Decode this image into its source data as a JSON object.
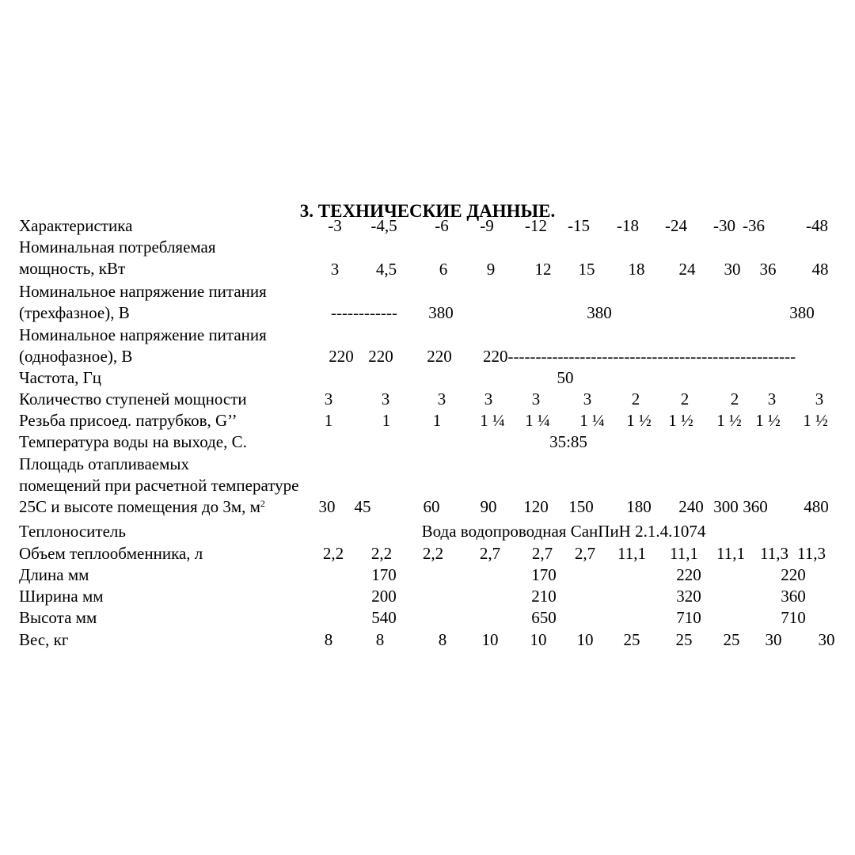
{
  "title": "3. ТЕХНИЧЕСКИЕ  ДАННЫЕ.",
  "rows": [
    {
      "label": [
        "Характеристика"
      ],
      "values": [
        "-3",
        "-4,5",
        "-6",
        "-9",
        "-12",
        "-15",
        "-18",
        "-24",
        "-30",
        "-36",
        "-48"
      ]
    },
    {
      "label": [
        "Номинальная потребляемая",
        "мощность, кВт"
      ],
      "values": [
        "3",
        "4,5",
        "6",
        "9",
        "12",
        "15",
        "18",
        "24",
        "30",
        "36",
        "48"
      ]
    },
    {
      "label": [
        "Номинальное напряжение питания",
        "(трехфазное), В"
      ],
      "values": [
        "------------",
        "380",
        "380",
        "380"
      ]
    },
    {
      "label": [
        "Номинальное напряжение питания",
        "(однофазное), В"
      ],
      "values": [
        "220",
        "220",
        "220",
        "220----------------------------------------------------"
      ]
    },
    {
      "label": [
        "Частота, Гц"
      ],
      "values": [
        "50"
      ]
    },
    {
      "label": [
        "Количество ступеней мощности"
      ],
      "values": [
        "3",
        "3",
        "3",
        "3",
        "3",
        "3",
        "2",
        "2",
        "2",
        "3",
        "3"
      ]
    },
    {
      "label": [
        "Резьба присоед. патрубков, G’’"
      ],
      "values": [
        "1",
        "1",
        "1",
        "1 ¼",
        "1 ¼",
        "1 ¼",
        "1 ½",
        "1 ½",
        "1 ½",
        "1 ½",
        "1 ½"
      ]
    },
    {
      "label": [
        "Температура воды на выходе, С."
      ],
      "values": [
        "35:85"
      ]
    },
    {
      "label": [
        "Площадь отапливаемых",
        "помещений при расчетной температуре",
        "25С и высоте помещения до 3м, м"
      ],
      "label_sup": "2",
      "values": [
        "30",
        "45",
        "60",
        "90",
        "120",
        "150",
        "180",
        "240",
        "300",
        "360",
        "480"
      ]
    },
    {
      "label": [
        "Теплоноситель"
      ],
      "values": [
        "Вода водопроводная СанПиН 2.1.4.1074"
      ]
    },
    {
      "label": [
        "Объем теплообменника, л"
      ],
      "values": [
        "2,2",
        "2,2",
        "2,2",
        "2,7",
        "2,7",
        "2,7",
        "11,1",
        "11,1",
        "11,1",
        "11,3",
        "11,3"
      ]
    },
    {
      "label": [
        "Длина мм"
      ],
      "values": [
        "170",
        "170",
        "220",
        "220"
      ]
    },
    {
      "label": [
        "Ширина мм"
      ],
      "values": [
        "200",
        "210",
        "320",
        "360"
      ]
    },
    {
      "label": [
        "Высота мм"
      ],
      "values": [
        "540",
        "650",
        "710",
        "710"
      ]
    },
    {
      "label": [
        "Вес, кг"
      ],
      "values": [
        "8",
        "8",
        "8",
        "10",
        "10",
        "10",
        "25",
        "25",
        "25",
        "30",
        "30"
      ]
    }
  ]
}
